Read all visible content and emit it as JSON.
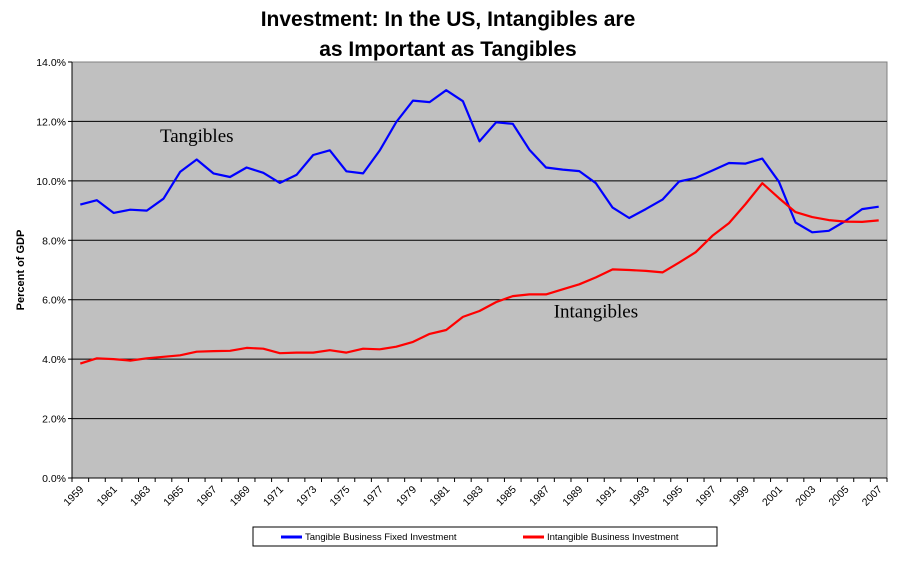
{
  "chart_data": {
    "type": "line",
    "title_lines": [
      "Investment: In the US, Intangibles are",
      "as Important as Tangibles"
    ],
    "ylabel": "Percent of GDP",
    "xlabel": "",
    "y_ticks": [
      "0.0%",
      "2.0%",
      "4.0%",
      "6.0%",
      "8.0%",
      "10.0%",
      "12.0%",
      "14.0%"
    ],
    "ylim": [
      0,
      14
    ],
    "xlim": [
      1959,
      2007
    ],
    "x_ticks": [
      "1959",
      "1961",
      "1963",
      "1965",
      "1967",
      "1969",
      "1971",
      "1973",
      "1975",
      "1977",
      "1979",
      "1981",
      "1983",
      "1985",
      "1987",
      "1989",
      "1991",
      "1993",
      "1995",
      "1997",
      "1999",
      "2001",
      "2003",
      "2005",
      "2007"
    ],
    "grid": "horizontal",
    "plot_background": "#c0c0c0",
    "x": [
      1959,
      1960,
      1961,
      1962,
      1963,
      1964,
      1965,
      1966,
      1967,
      1968,
      1969,
      1970,
      1971,
      1972,
      1973,
      1974,
      1975,
      1976,
      1977,
      1978,
      1979,
      1980,
      1981,
      1982,
      1983,
      1984,
      1985,
      1986,
      1987,
      1988,
      1989,
      1990,
      1991,
      1992,
      1993,
      1994,
      1995,
      1996,
      1997,
      1998,
      1999,
      2000,
      2001,
      2002,
      2003,
      2004,
      2005,
      2006,
      2007
    ],
    "series": [
      {
        "name": "Tangible Business Fixed Investment",
        "color": "#0000ff",
        "values": [
          9.2,
          9.35,
          8.92,
          9.03,
          9.0,
          9.4,
          10.3,
          10.72,
          10.25,
          10.13,
          10.45,
          10.27,
          9.93,
          10.2,
          10.87,
          11.03,
          10.32,
          10.25,
          11.02,
          11.98,
          12.7,
          12.65,
          13.05,
          12.68,
          11.33,
          11.97,
          11.92,
          11.05,
          10.45,
          10.38,
          10.33,
          9.92,
          9.1,
          8.75,
          9.05,
          9.37,
          9.98,
          10.1,
          10.35,
          10.6,
          10.58,
          10.75,
          9.97,
          8.6,
          8.27,
          8.32,
          8.65,
          9.05,
          9.13
        ]
      },
      {
        "name": "Intangible Business Investment",
        "color": "#ff0000",
        "values": [
          3.85,
          4.03,
          4.0,
          3.95,
          4.03,
          4.08,
          4.13,
          4.25,
          4.27,
          4.28,
          4.38,
          4.35,
          4.2,
          4.22,
          4.22,
          4.3,
          4.22,
          4.35,
          4.33,
          4.42,
          4.58,
          4.85,
          4.98,
          5.42,
          5.62,
          5.92,
          6.12,
          6.18,
          6.18,
          6.35,
          6.52,
          6.75,
          7.02,
          7.0,
          6.97,
          6.92,
          7.25,
          7.6,
          8.15,
          8.58,
          9.22,
          9.92,
          9.42,
          8.95,
          8.78,
          8.68,
          8.63,
          8.62,
          8.67
        ]
      }
    ],
    "annotations": [
      {
        "text": "Tangibles",
        "x": 1966,
        "y": 11.3
      },
      {
        "text": "Intangibles",
        "x": 1990,
        "y": 5.4
      }
    ],
    "legend_placement": "bottom-center"
  }
}
